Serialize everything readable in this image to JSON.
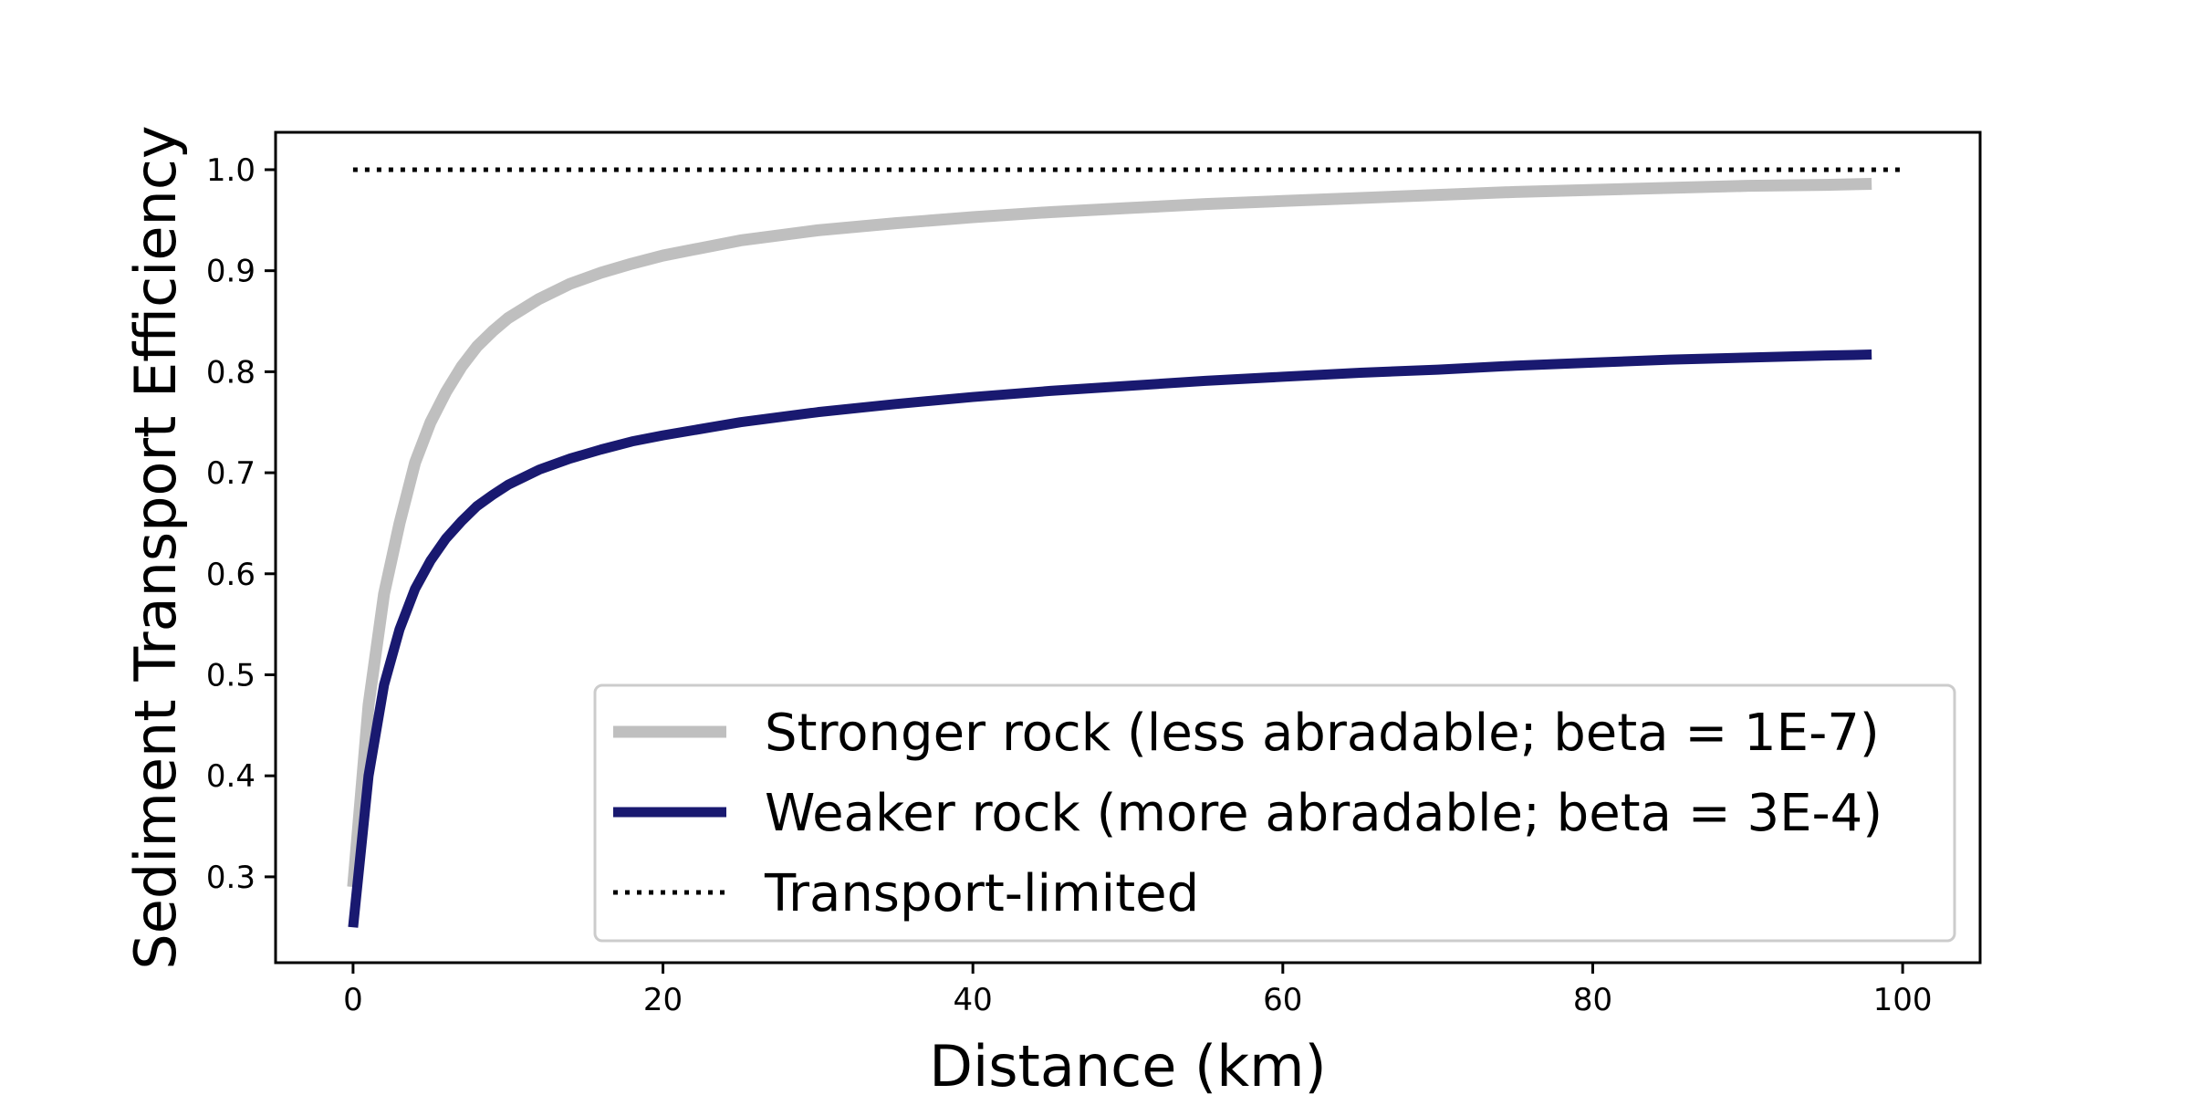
{
  "chart_data": {
    "type": "line",
    "title": "",
    "xlabel": "Distance (km)",
    "ylabel": "Sediment Transport Efficiency",
    "xlim": [
      -5,
      105
    ],
    "ylim": [
      0.215,
      1.037
    ],
    "xticks": [
      0,
      20,
      40,
      60,
      80,
      100
    ],
    "xtick_labels": [
      "0",
      "20",
      "40",
      "60",
      "80",
      "100"
    ],
    "yticks": [
      0.3,
      0.4,
      0.5,
      0.6,
      0.7,
      0.8,
      0.9,
      1.0
    ],
    "ytick_labels": [
      "0.3",
      "0.4",
      "0.5",
      "0.6",
      "0.7",
      "0.8",
      "0.9",
      "1.0"
    ],
    "grid": false,
    "legend_position": "lower-right",
    "series": [
      {
        "name": "Stronger rock (less abradable; beta = 1E-7)",
        "color": "#bfbfbf",
        "style": "solid",
        "x": [
          0,
          1,
          2,
          3,
          4,
          5,
          6,
          7,
          8,
          9,
          10,
          12,
          14,
          16,
          18,
          20,
          25,
          30,
          35,
          40,
          45,
          50,
          55,
          60,
          65,
          70,
          75,
          80,
          85,
          90,
          95,
          98
        ],
        "y": [
          0.29,
          0.47,
          0.58,
          0.65,
          0.71,
          0.75,
          0.78,
          0.805,
          0.825,
          0.84,
          0.853,
          0.872,
          0.887,
          0.898,
          0.907,
          0.915,
          0.93,
          0.94,
          0.947,
          0.953,
          0.958,
          0.962,
          0.966,
          0.969,
          0.972,
          0.975,
          0.978,
          0.98,
          0.982,
          0.984,
          0.985,
          0.986
        ]
      },
      {
        "name": "Weaker rock (more abradable; beta = 3E-4)",
        "color": "#191970",
        "style": "solid",
        "x": [
          0,
          1,
          2,
          3,
          4,
          5,
          6,
          7,
          8,
          9,
          10,
          12,
          14,
          16,
          18,
          20,
          25,
          30,
          35,
          40,
          45,
          50,
          55,
          60,
          65,
          70,
          75,
          80,
          85,
          90,
          95,
          98
        ],
        "y": [
          0.25,
          0.4,
          0.49,
          0.545,
          0.585,
          0.613,
          0.635,
          0.652,
          0.667,
          0.678,
          0.688,
          0.703,
          0.714,
          0.723,
          0.731,
          0.737,
          0.75,
          0.76,
          0.768,
          0.775,
          0.781,
          0.786,
          0.791,
          0.795,
          0.799,
          0.802,
          0.806,
          0.809,
          0.812,
          0.814,
          0.816,
          0.817
        ]
      },
      {
        "name": "Transport-limited",
        "color": "#000000",
        "style": "dotted",
        "x": [
          0,
          100
        ],
        "y": [
          1.0,
          1.0
        ]
      }
    ]
  }
}
